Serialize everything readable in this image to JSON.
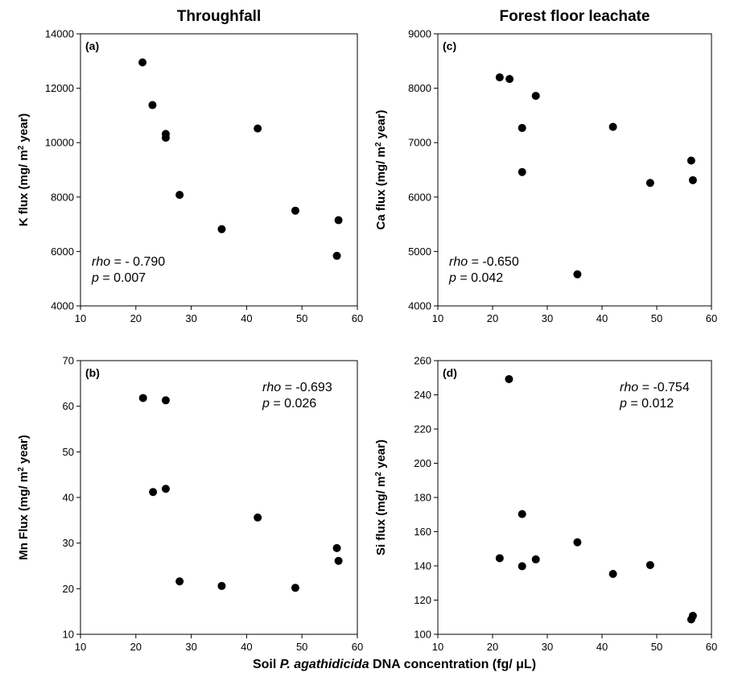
{
  "figure": {
    "column_titles": [
      "Throughfall",
      "Forest floor leachate"
    ],
    "xlabel": {
      "before": "Soil ",
      "species": "P. agathidicida",
      "after": " DNA concentration (fg/ ",
      "unit_mu": "μ",
      "unit_end": "L)"
    }
  },
  "chart_data": [
    {
      "id": "a",
      "type": "scatter",
      "panel_label": "(a)",
      "ylabel": {
        "main": "K flux (mg/ m",
        "sup": "2",
        "end": " year)"
      },
      "xlim": [
        10,
        60
      ],
      "ylim": [
        4000,
        14000
      ],
      "xticks": [
        10,
        20,
        30,
        40,
        50,
        60
      ],
      "yticks": [
        4000,
        6000,
        8000,
        10000,
        12000,
        14000
      ],
      "stat": {
        "rho_label": "rho",
        "rho_text": " = - 0.790",
        "p_label": "p",
        "p_text": " = 0.007",
        "position": "bottom-left"
      },
      "points": [
        {
          "x": 21.2,
          "y": 12950
        },
        {
          "x": 23.0,
          "y": 11380
        },
        {
          "x": 25.4,
          "y": 10320
        },
        {
          "x": 25.4,
          "y": 10180
        },
        {
          "x": 27.9,
          "y": 8080
        },
        {
          "x": 35.5,
          "y": 6820
        },
        {
          "x": 42.0,
          "y": 10520
        },
        {
          "x": 48.8,
          "y": 7500
        },
        {
          "x": 56.3,
          "y": 5840
        },
        {
          "x": 56.6,
          "y": 7150
        }
      ]
    },
    {
      "id": "c",
      "type": "scatter",
      "panel_label": "(c)",
      "ylabel": {
        "main": "Ca flux (mg/ m",
        "sup": "2",
        "end": " year)"
      },
      "xlim": [
        10,
        60
      ],
      "ylim": [
        4000,
        9000
      ],
      "xticks": [
        10,
        20,
        30,
        40,
        50,
        60
      ],
      "yticks": [
        4000,
        5000,
        6000,
        7000,
        8000,
        9000
      ],
      "stat": {
        "rho_label": "rho",
        "rho_text": " = -0.650",
        "p_label": "p",
        "p_text": " = 0.042",
        "position": "bottom-left"
      },
      "points": [
        {
          "x": 21.3,
          "y": 8200
        },
        {
          "x": 23.1,
          "y": 8170
        },
        {
          "x": 27.9,
          "y": 7860
        },
        {
          "x": 25.4,
          "y": 7270
        },
        {
          "x": 25.4,
          "y": 6460
        },
        {
          "x": 35.5,
          "y": 4580
        },
        {
          "x": 42.0,
          "y": 7290
        },
        {
          "x": 48.8,
          "y": 6260
        },
        {
          "x": 56.3,
          "y": 6670
        },
        {
          "x": 56.6,
          "y": 6310
        }
      ]
    },
    {
      "id": "b",
      "type": "scatter",
      "panel_label": "(b)",
      "ylabel": {
        "main": "Mn Flux (mg/ m",
        "sup": "2",
        "end": " year)"
      },
      "xlim": [
        10,
        60
      ],
      "ylim": [
        10,
        70
      ],
      "xticks": [
        10,
        20,
        30,
        40,
        50,
        60
      ],
      "yticks": [
        10,
        20,
        30,
        40,
        50,
        60,
        70
      ],
      "stat": {
        "rho_label": "rho",
        "rho_text": " = -0.693",
        "p_label": "p",
        "p_text": " = 0.026",
        "position": "top-right"
      },
      "points": [
        {
          "x": 21.3,
          "y": 61.8
        },
        {
          "x": 25.4,
          "y": 61.3
        },
        {
          "x": 23.1,
          "y": 41.2
        },
        {
          "x": 25.4,
          "y": 41.9
        },
        {
          "x": 27.9,
          "y": 21.6
        },
        {
          "x": 35.5,
          "y": 20.6
        },
        {
          "x": 42.0,
          "y": 35.6
        },
        {
          "x": 48.8,
          "y": 20.2
        },
        {
          "x": 56.3,
          "y": 28.9
        },
        {
          "x": 56.6,
          "y": 26.1
        }
      ]
    },
    {
      "id": "d",
      "type": "scatter",
      "panel_label": "(d)",
      "ylabel": {
        "main": "Si flux (mg/ m",
        "sup": "2",
        "end": " year)"
      },
      "xlim": [
        10,
        60
      ],
      "ylim": [
        100,
        260
      ],
      "xticks": [
        10,
        20,
        30,
        40,
        50,
        60
      ],
      "yticks": [
        100,
        120,
        140,
        160,
        180,
        200,
        220,
        240,
        260
      ],
      "stat": {
        "rho_label": "rho",
        "rho_text": " = -0.754",
        "p_label": "p",
        "p_text": " = 0.012",
        "position": "top-right"
      },
      "points": [
        {
          "x": 23.0,
          "y": 249.2
        },
        {
          "x": 21.3,
          "y": 144.5
        },
        {
          "x": 25.4,
          "y": 170.3
        },
        {
          "x": 25.4,
          "y": 139.8
        },
        {
          "x": 27.9,
          "y": 143.8
        },
        {
          "x": 35.5,
          "y": 153.8
        },
        {
          "x": 42.0,
          "y": 135.3
        },
        {
          "x": 48.8,
          "y": 140.5
        },
        {
          "x": 56.3,
          "y": 108.7
        },
        {
          "x": 56.6,
          "y": 110.8
        }
      ]
    }
  ]
}
